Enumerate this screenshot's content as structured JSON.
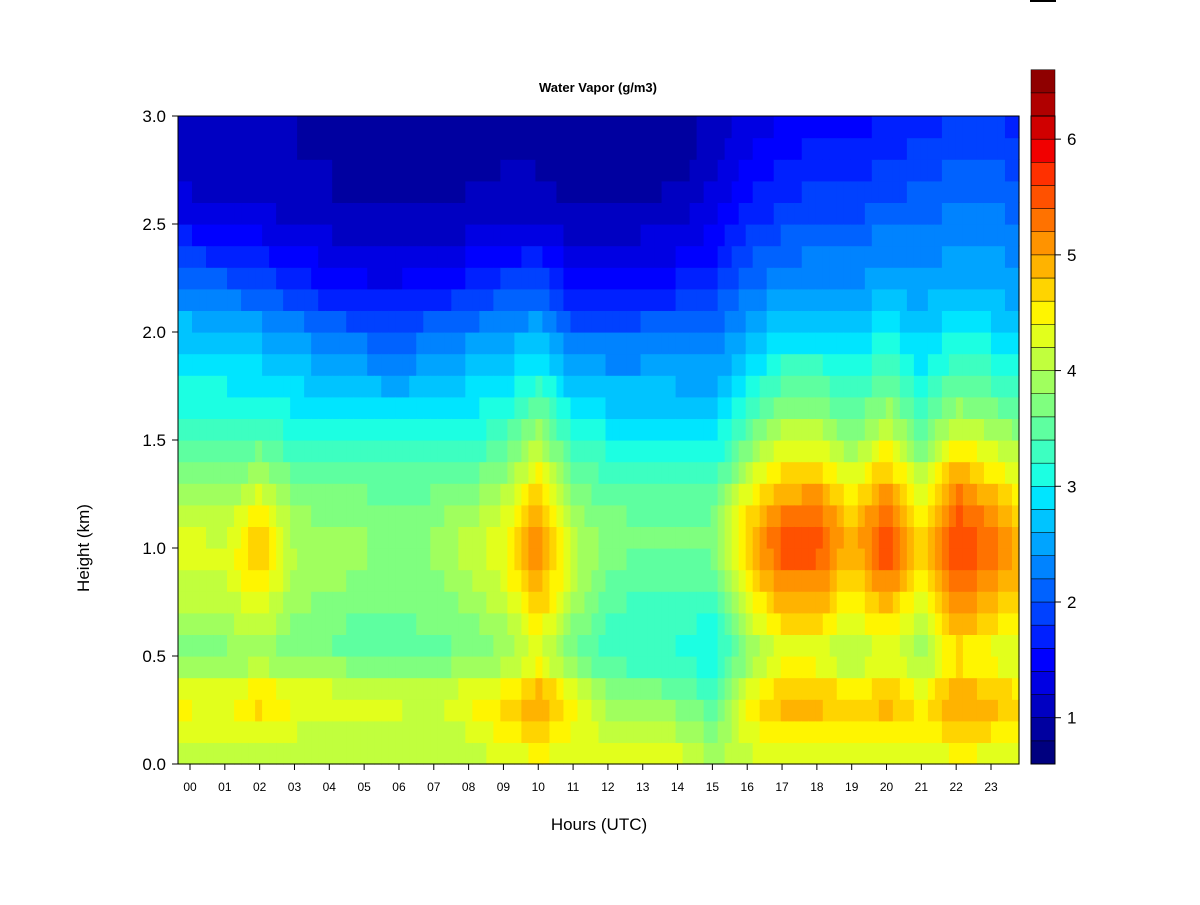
{
  "chart_data": {
    "type": "heatmap",
    "title": "Water Vapor (g/m3)",
    "xlabel": "Hours (UTC)",
    "ylabel": "Height (km)",
    "x_tick_labels": [
      "00",
      "01",
      "02",
      "03",
      "04",
      "05",
      "06",
      "07",
      "08",
      "09",
      "10",
      "11",
      "12",
      "13",
      "14",
      "15",
      "16",
      "17",
      "18",
      "19",
      "20",
      "21",
      "22",
      "23"
    ],
    "x_tick_values": [
      0,
      1,
      2,
      3,
      4,
      5,
      6,
      7,
      8,
      9,
      10,
      11,
      12,
      13,
      14,
      15,
      16,
      17,
      18,
      19,
      20,
      21,
      22,
      23
    ],
    "y_tick_labels": [
      "0.0",
      "0.5",
      "1.0",
      "1.5",
      "2.0",
      "2.5",
      "3.0"
    ],
    "y_tick_values": [
      0.0,
      0.5,
      1.0,
      1.5,
      2.0,
      2.5,
      3.0
    ],
    "xlim": [
      0,
      23.9
    ],
    "ylim": [
      0.0,
      3.0
    ],
    "colorbar": {
      "min": 0.6,
      "max": 6.2,
      "step": 0.2,
      "tick_labels": [
        "1",
        "2",
        "3",
        "4",
        "5",
        "6"
      ],
      "tick_values": [
        1,
        2,
        3,
        4,
        5,
        6
      ],
      "colors": [
        "#00007F",
        "#0000A0",
        "#0000C2",
        "#0000E3",
        "#0000FF",
        "#0020FF",
        "#0041FF",
        "#0062FF",
        "#0083FF",
        "#00A4FF",
        "#00C4FF",
        "#00E5FF",
        "#1CFFE2",
        "#3DFFC1",
        "#5EFFA0",
        "#7FFF7F",
        "#A0FF5E",
        "#C1FF3D",
        "#E2FF1C",
        "#FFF500",
        "#FFD400",
        "#FFB300",
        "#FF9300",
        "#FF7200",
        "#FF5100",
        "#FF3000",
        "#F10000",
        "#D00000",
        "#B00000",
        "#8F0000"
      ]
    },
    "grid_heights_km": [
      0.0,
      0.1,
      0.2,
      0.3,
      0.4,
      0.5,
      0.6,
      0.7,
      0.8,
      0.9,
      1.0,
      1.1,
      1.2,
      1.3,
      1.4,
      1.5,
      1.6,
      1.7,
      1.8,
      1.9,
      2.0,
      2.1,
      2.2,
      2.3,
      2.4,
      2.5,
      2.6,
      2.7,
      2.8,
      2.9,
      3.0
    ],
    "hourly_profiles": [
      {
        "hour": 0,
        "values": [
          4.0,
          4.1,
          4.4,
          4.4,
          4.2,
          3.7,
          3.9,
          4.0,
          4.1,
          4.2,
          4.3,
          4.2,
          4.0,
          3.8,
          3.6,
          3.3,
          3.2,
          3.1,
          3.0,
          2.9,
          2.7,
          2.5,
          2.2,
          2.0,
          1.7,
          1.5,
          1.3,
          1.1,
          1.0,
          1.0,
          1.0
        ]
      },
      {
        "hour": 1,
        "values": [
          4.0,
          4.1,
          4.3,
          4.4,
          4.1,
          3.7,
          3.9,
          4.0,
          4.1,
          4.2,
          4.2,
          4.1,
          3.9,
          3.7,
          3.5,
          3.3,
          3.2,
          3.1,
          2.9,
          2.8,
          2.7,
          2.4,
          2.1,
          1.9,
          1.6,
          1.4,
          1.2,
          1.1,
          1.0,
          1.0,
          1.0
        ]
      },
      {
        "hour": 2,
        "values": [
          4.0,
          4.2,
          4.6,
          4.7,
          4.3,
          3.8,
          4.0,
          4.3,
          4.5,
          4.7,
          4.8,
          4.7,
          4.4,
          4.1,
          3.8,
          3.5,
          3.3,
          3.1,
          2.9,
          2.7,
          2.5,
          2.3,
          2.0,
          1.8,
          1.5,
          1.3,
          1.2,
          1.1,
          1.0,
          1.0,
          1.0
        ]
      },
      {
        "hour": 3,
        "values": [
          4.0,
          4.1,
          4.3,
          4.4,
          4.1,
          3.6,
          3.7,
          3.8,
          3.9,
          4.0,
          4.0,
          3.9,
          3.8,
          3.6,
          3.4,
          3.2,
          3.0,
          2.9,
          2.8,
          2.6,
          2.4,
          2.1,
          1.8,
          1.6,
          1.4,
          1.2,
          1.1,
          1.0,
          1.0,
          1.0,
          1.0
        ]
      },
      {
        "hour": 4,
        "values": [
          4.0,
          4.1,
          4.2,
          4.3,
          4.1,
          3.6,
          3.6,
          3.7,
          3.8,
          3.9,
          3.9,
          3.8,
          3.7,
          3.5,
          3.4,
          3.2,
          3.0,
          2.8,
          2.6,
          2.4,
          2.2,
          1.9,
          1.6,
          1.4,
          1.3,
          1.1,
          1.0,
          1.0,
          1.0,
          0.9,
          0.9
        ]
      },
      {
        "hour": 5,
        "values": [
          4.0,
          4.1,
          4.2,
          4.2,
          4.0,
          3.5,
          3.5,
          3.6,
          3.7,
          3.8,
          3.8,
          3.8,
          3.7,
          3.5,
          3.4,
          3.2,
          3.0,
          2.8,
          2.5,
          2.3,
          2.1,
          1.8,
          1.5,
          1.3,
          1.2,
          1.1,
          1.0,
          0.9,
          0.9,
          0.9,
          0.9
        ]
      },
      {
        "hour": 6,
        "values": [
          4.0,
          4.1,
          4.2,
          4.2,
          4.0,
          3.5,
          3.5,
          3.6,
          3.6,
          3.7,
          3.7,
          3.7,
          3.6,
          3.5,
          3.3,
          3.1,
          2.9,
          2.7,
          2.4,
          2.2,
          2.0,
          1.7,
          1.5,
          1.3,
          1.2,
          1.1,
          1.0,
          0.9,
          0.9,
          0.9,
          0.9
        ]
      },
      {
        "hour": 7,
        "values": [
          4.0,
          4.0,
          4.1,
          4.2,
          4.0,
          3.5,
          3.6,
          3.7,
          3.7,
          3.8,
          3.8,
          3.8,
          3.7,
          3.5,
          3.4,
          3.2,
          3.0,
          2.8,
          2.6,
          2.4,
          2.2,
          1.9,
          1.6,
          1.4,
          1.2,
          1.1,
          1.0,
          0.9,
          0.9,
          0.9,
          0.9
        ]
      },
      {
        "hour": 8,
        "values": [
          4.1,
          4.1,
          4.3,
          4.4,
          4.1,
          3.6,
          3.7,
          3.8,
          3.9,
          4.0,
          4.1,
          4.0,
          3.8,
          3.6,
          3.4,
          3.2,
          3.0,
          2.9,
          2.7,
          2.5,
          2.3,
          2.0,
          1.7,
          1.5,
          1.3,
          1.1,
          1.0,
          1.0,
          0.9,
          0.9,
          0.9
        ]
      },
      {
        "hour": 9,
        "values": [
          4.3,
          4.3,
          4.6,
          4.6,
          4.2,
          3.8,
          3.9,
          4.0,
          4.2,
          4.3,
          4.4,
          4.3,
          4.1,
          3.9,
          3.6,
          3.4,
          3.2,
          3.0,
          2.8,
          2.6,
          2.4,
          2.2,
          1.9,
          1.7,
          1.4,
          1.2,
          1.1,
          1.0,
          1.0,
          0.9,
          0.9
        ]
      },
      {
        "hour": 10,
        "values": [
          4.4,
          4.5,
          4.9,
          5.0,
          4.7,
          4.2,
          4.4,
          4.7,
          4.9,
          5.1,
          5.2,
          5.1,
          4.9,
          4.6,
          4.3,
          4.0,
          3.7,
          3.4,
          3.1,
          2.9,
          2.6,
          2.3,
          2.0,
          1.8,
          1.5,
          1.3,
          1.1,
          1.0,
          1.0,
          0.9,
          0.9
        ]
      },
      {
        "hour": 11,
        "values": [
          4.3,
          4.3,
          4.5,
          4.5,
          4.1,
          3.6,
          3.7,
          3.9,
          4.0,
          4.1,
          4.1,
          4.0,
          3.8,
          3.6,
          3.4,
          3.2,
          3.0,
          2.8,
          2.6,
          2.4,
          2.1,
          1.8,
          1.6,
          1.4,
          1.2,
          1.1,
          1.0,
          0.9,
          0.9,
          0.9,
          0.9
        ]
      },
      {
        "hour": 12,
        "values": [
          4.4,
          4.2,
          4.1,
          3.9,
          3.6,
          3.3,
          3.3,
          3.4,
          3.5,
          3.6,
          3.7,
          3.7,
          3.6,
          3.4,
          3.3,
          3.1,
          2.9,
          2.7,
          2.5,
          2.3,
          2.1,
          1.8,
          1.6,
          1.4,
          1.2,
          1.1,
          1.0,
          0.9,
          0.9,
          0.9,
          0.9
        ]
      },
      {
        "hour": 13,
        "values": [
          4.5,
          4.2,
          4.0,
          3.8,
          3.5,
          3.2,
          3.2,
          3.3,
          3.4,
          3.5,
          3.6,
          3.6,
          3.5,
          3.4,
          3.2,
          3.0,
          2.9,
          2.7,
          2.5,
          2.3,
          2.1,
          1.9,
          1.6,
          1.4,
          1.3,
          1.1,
          1.0,
          0.9,
          0.9,
          0.9,
          0.9
        ]
      },
      {
        "hour": 14,
        "values": [
          4.4,
          4.1,
          3.9,
          3.7,
          3.4,
          3.2,
          3.2,
          3.3,
          3.4,
          3.5,
          3.6,
          3.6,
          3.5,
          3.4,
          3.2,
          3.1,
          2.9,
          2.7,
          2.5,
          2.4,
          2.2,
          1.9,
          1.7,
          1.5,
          1.3,
          1.2,
          1.1,
          1.0,
          0.9,
          0.9,
          0.9
        ]
      },
      {
        "hour": 15,
        "values": [
          4.0,
          3.8,
          3.6,
          3.4,
          3.2,
          3.0,
          3.1,
          3.2,
          3.4,
          3.5,
          3.6,
          3.6,
          3.5,
          3.3,
          3.1,
          2.9,
          2.8,
          2.6,
          2.5,
          2.3,
          2.2,
          2.0,
          1.8,
          1.6,
          1.5,
          1.4,
          1.3,
          1.2,
          1.1,
          1.1,
          1.1
        ]
      },
      {
        "hour": 16,
        "values": [
          4.1,
          4.2,
          4.4,
          4.4,
          4.1,
          3.7,
          3.9,
          4.2,
          4.4,
          4.6,
          4.8,
          4.7,
          4.5,
          4.2,
          3.9,
          3.6,
          3.3,
          3.1,
          2.9,
          2.7,
          2.5,
          2.4,
          2.2,
          2.0,
          1.9,
          1.7,
          1.6,
          1.5,
          1.4,
          1.3,
          1.3
        ]
      },
      {
        "hour": 17,
        "values": [
          4.3,
          4.4,
          4.8,
          4.9,
          4.6,
          4.2,
          4.5,
          4.8,
          5.1,
          5.3,
          5.5,
          5.4,
          5.1,
          4.8,
          4.5,
          4.2,
          3.9,
          3.6,
          3.3,
          3.1,
          2.8,
          2.6,
          2.4,
          2.2,
          2.1,
          1.9,
          1.8,
          1.7,
          1.6,
          1.5,
          1.4
        ]
      },
      {
        "hour": 18,
        "values": [
          4.3,
          4.4,
          4.8,
          4.9,
          4.6,
          4.2,
          4.5,
          4.8,
          5.1,
          5.3,
          5.5,
          5.4,
          5.2,
          4.9,
          4.6,
          4.2,
          3.9,
          3.6,
          3.4,
          3.1,
          2.9,
          2.7,
          2.5,
          2.3,
          2.2,
          2.0,
          1.9,
          1.8,
          1.7,
          1.6,
          1.5
        ]
      },
      {
        "hour": 19,
        "values": [
          4.2,
          4.3,
          4.6,
          4.6,
          4.3,
          3.9,
          4.1,
          4.3,
          4.5,
          4.7,
          4.9,
          4.8,
          4.6,
          4.3,
          4.0,
          3.7,
          3.5,
          3.3,
          3.1,
          2.9,
          2.7,
          2.6,
          2.4,
          2.3,
          2.2,
          2.0,
          1.9,
          1.8,
          1.7,
          1.6,
          1.5
        ]
      },
      {
        "hour": 20,
        "values": [
          4.3,
          4.4,
          4.8,
          4.9,
          4.6,
          4.2,
          4.5,
          4.8,
          5.1,
          5.4,
          5.6,
          5.5,
          5.3,
          5.0,
          4.7,
          4.3,
          4.0,
          3.7,
          3.4,
          3.2,
          3.0,
          2.8,
          2.6,
          2.4,
          2.3,
          2.2,
          2.0,
          1.9,
          1.8,
          1.7,
          1.6
        ]
      },
      {
        "hour": 21,
        "values": [
          4.2,
          4.3,
          4.5,
          4.5,
          4.2,
          3.8,
          3.9,
          4.1,
          4.3,
          4.5,
          4.6,
          4.5,
          4.3,
          4.1,
          3.8,
          3.6,
          3.4,
          3.2,
          3.0,
          2.9,
          2.7,
          2.6,
          2.5,
          2.4,
          2.3,
          2.2,
          2.1,
          2.0,
          1.9,
          1.8,
          1.7
        ]
      },
      {
        "hour": 22,
        "values": [
          4.4,
          4.5,
          4.9,
          5.0,
          4.8,
          4.5,
          4.8,
          5.1,
          5.3,
          5.5,
          5.6,
          5.5,
          5.4,
          5.1,
          4.8,
          4.4,
          4.0,
          3.7,
          3.4,
          3.2,
          3.0,
          2.8,
          2.7,
          2.5,
          2.4,
          2.3,
          2.2,
          2.1,
          2.0,
          1.9,
          1.8
        ]
      },
      {
        "hour": 23,
        "values": [
          4.3,
          4.4,
          4.8,
          4.9,
          4.6,
          4.3,
          4.5,
          4.8,
          5.0,
          5.2,
          5.3,
          5.2,
          5.0,
          4.7,
          4.4,
          4.1,
          3.8,
          3.5,
          3.3,
          3.1,
          2.9,
          2.7,
          2.6,
          2.5,
          2.4,
          2.3,
          2.2,
          2.1,
          2.0,
          1.9,
          1.8
        ]
      },
      {
        "hour": 23.9,
        "values": [
          4.2,
          4.3,
          4.6,
          4.7,
          4.4,
          4.1,
          4.3,
          4.5,
          4.7,
          4.8,
          4.9,
          4.8,
          4.6,
          4.4,
          4.1,
          3.8,
          3.6,
          3.3,
          3.1,
          2.9,
          2.8,
          2.6,
          2.5,
          2.4,
          2.3,
          2.2,
          2.1,
          2.0,
          1.9,
          1.8,
          1.7
        ]
      }
    ]
  }
}
